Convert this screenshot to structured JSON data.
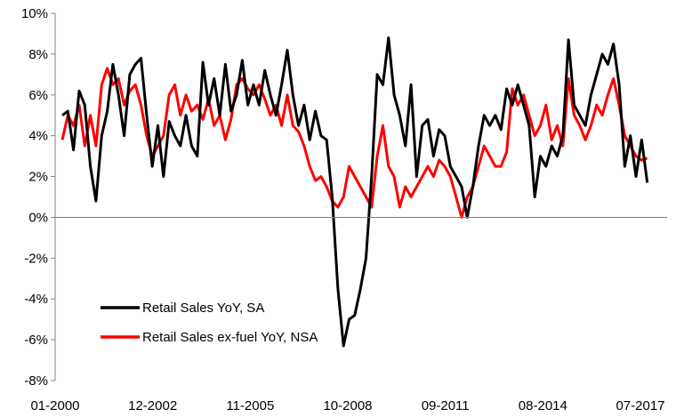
{
  "chart_data": {
    "type": "line",
    "title": "",
    "xlabel": "",
    "ylabel": "",
    "ylim": [
      -0.08,
      0.1
    ],
    "ytick_values": [
      -0.08,
      -0.06,
      -0.04,
      -0.02,
      0,
      0.02,
      0.04,
      0.06,
      0.08,
      0.1
    ],
    "ytick_labels": [
      "-8%",
      "-6%",
      "-4%",
      "-2%",
      "0%",
      "2%",
      "4%",
      "6%",
      "8%",
      "10%"
    ],
    "xlim": [
      "2000-01",
      "2017-07"
    ],
    "xtick_labels": [
      "01-2000",
      "12-2002",
      "11-2005",
      "10-2008",
      "09-2011",
      "08-2014",
      "07-2017"
    ],
    "grid": false,
    "legend_position": "bottom-left, inside plot",
    "series": [
      {
        "name": "Retail Sales YoY, SA",
        "color": "#000000",
        "points": [
          [
            "2000-01",
            5.0
          ],
          [
            "2000-03",
            5.2
          ],
          [
            "2000-05",
            3.3
          ],
          [
            "2000-07",
            6.2
          ],
          [
            "2000-09",
            5.5
          ],
          [
            "2000-11",
            2.5
          ],
          [
            "2001-01",
            0.8
          ],
          [
            "2001-03",
            4.0
          ],
          [
            "2001-05",
            5.2
          ],
          [
            "2001-07",
            7.5
          ],
          [
            "2001-09",
            6.0
          ],
          [
            "2001-11",
            4.0
          ],
          [
            "2002-01",
            7.0
          ],
          [
            "2002-03",
            7.5
          ],
          [
            "2002-05",
            7.8
          ],
          [
            "2002-07",
            5.0
          ],
          [
            "2002-09",
            2.5
          ],
          [
            "2002-11",
            4.5
          ],
          [
            "2003-01",
            2.0
          ],
          [
            "2003-03",
            4.7
          ],
          [
            "2003-05",
            4.0
          ],
          [
            "2003-07",
            3.5
          ],
          [
            "2003-09",
            5.0
          ],
          [
            "2003-11",
            3.5
          ],
          [
            "2004-01",
            3.0
          ],
          [
            "2004-03",
            7.6
          ],
          [
            "2004-05",
            5.5
          ],
          [
            "2004-07",
            6.8
          ],
          [
            "2004-09",
            5.0
          ],
          [
            "2004-11",
            7.5
          ],
          [
            "2005-01",
            5.2
          ],
          [
            "2005-03",
            6.0
          ],
          [
            "2005-05",
            7.7
          ],
          [
            "2005-07",
            5.5
          ],
          [
            "2005-09",
            6.5
          ],
          [
            "2005-11",
            5.5
          ],
          [
            "2006-01",
            7.2
          ],
          [
            "2006-03",
            6.0
          ],
          [
            "2006-05",
            5.0
          ],
          [
            "2006-07",
            6.5
          ],
          [
            "2006-09",
            8.2
          ],
          [
            "2006-11",
            6.0
          ],
          [
            "2007-01",
            4.5
          ],
          [
            "2007-03",
            5.5
          ],
          [
            "2007-05",
            3.8
          ],
          [
            "2007-07",
            5.2
          ],
          [
            "2007-09",
            4.0
          ],
          [
            "2007-11",
            3.8
          ],
          [
            "2008-01",
            1.0
          ],
          [
            "2008-03",
            -3.5
          ],
          [
            "2008-05",
            -6.3
          ],
          [
            "2008-07",
            -5.0
          ],
          [
            "2008-09",
            -4.8
          ],
          [
            "2008-11",
            -3.5
          ],
          [
            "2009-01",
            -2.0
          ],
          [
            "2009-03",
            2.0
          ],
          [
            "2009-05",
            7.0
          ],
          [
            "2009-07",
            6.5
          ],
          [
            "2009-09",
            8.8
          ],
          [
            "2009-11",
            6.0
          ],
          [
            "2010-01",
            5.0
          ],
          [
            "2010-03",
            3.5
          ],
          [
            "2010-05",
            6.5
          ],
          [
            "2010-07",
            2.0
          ],
          [
            "2010-09",
            4.5
          ],
          [
            "2010-11",
            4.8
          ],
          [
            "2011-01",
            3.0
          ],
          [
            "2011-03",
            4.3
          ],
          [
            "2011-05",
            4.0
          ],
          [
            "2011-07",
            2.5
          ],
          [
            "2011-09",
            2.0
          ],
          [
            "2011-11",
            1.5
          ],
          [
            "2012-01",
            0.0
          ],
          [
            "2012-03",
            1.5
          ],
          [
            "2012-05",
            3.5
          ],
          [
            "2012-07",
            5.0
          ],
          [
            "2012-09",
            4.5
          ],
          [
            "2012-11",
            5.0
          ],
          [
            "2013-01",
            4.3
          ],
          [
            "2013-03",
            6.3
          ],
          [
            "2013-05",
            5.5
          ],
          [
            "2013-07",
            6.5
          ],
          [
            "2013-09",
            5.5
          ],
          [
            "2013-11",
            4.5
          ],
          [
            "2014-01",
            1.0
          ],
          [
            "2014-03",
            3.0
          ],
          [
            "2014-05",
            2.5
          ],
          [
            "2014-07",
            3.5
          ],
          [
            "2014-09",
            3.0
          ],
          [
            "2014-11",
            4.0
          ],
          [
            "2015-01",
            8.7
          ],
          [
            "2015-03",
            5.5
          ],
          [
            "2015-05",
            5.0
          ],
          [
            "2015-07",
            4.5
          ],
          [
            "2015-09",
            6.0
          ],
          [
            "2015-11",
            7.0
          ],
          [
            "2016-01",
            8.0
          ],
          [
            "2016-03",
            7.5
          ],
          [
            "2016-05",
            8.5
          ],
          [
            "2016-07",
            6.5
          ],
          [
            "2016-09",
            2.5
          ],
          [
            "2016-11",
            4.0
          ],
          [
            "2017-01",
            2.0
          ],
          [
            "2017-03",
            3.8
          ],
          [
            "2017-05",
            1.7
          ]
        ]
      },
      {
        "name": "Retail Sales ex-fuel YoY, NSA",
        "color": "#ff0000",
        "points": [
          [
            "2000-01",
            3.8
          ],
          [
            "2000-03",
            5.0
          ],
          [
            "2000-05",
            4.5
          ],
          [
            "2000-07",
            5.5
          ],
          [
            "2000-09",
            3.5
          ],
          [
            "2000-11",
            5.0
          ],
          [
            "2001-01",
            3.5
          ],
          [
            "2001-03",
            6.5
          ],
          [
            "2001-05",
            7.3
          ],
          [
            "2001-07",
            6.5
          ],
          [
            "2001-09",
            6.8
          ],
          [
            "2001-11",
            5.5
          ],
          [
            "2002-01",
            6.2
          ],
          [
            "2002-03",
            6.5
          ],
          [
            "2002-05",
            5.5
          ],
          [
            "2002-07",
            4.0
          ],
          [
            "2002-09",
            3.0
          ],
          [
            "2002-11",
            3.5
          ],
          [
            "2003-01",
            4.0
          ],
          [
            "2003-03",
            6.0
          ],
          [
            "2003-05",
            6.5
          ],
          [
            "2003-07",
            5.0
          ],
          [
            "2003-09",
            6.0
          ],
          [
            "2003-11",
            5.2
          ],
          [
            "2004-01",
            5.5
          ],
          [
            "2004-03",
            4.8
          ],
          [
            "2004-05",
            5.8
          ],
          [
            "2004-07",
            4.5
          ],
          [
            "2004-09",
            5.0
          ],
          [
            "2004-11",
            3.8
          ],
          [
            "2005-01",
            4.8
          ],
          [
            "2005-03",
            6.5
          ],
          [
            "2005-05",
            6.8
          ],
          [
            "2005-07",
            6.3
          ],
          [
            "2005-09",
            6.0
          ],
          [
            "2005-11",
            6.5
          ],
          [
            "2006-01",
            5.8
          ],
          [
            "2006-03",
            5.0
          ],
          [
            "2006-05",
            5.5
          ],
          [
            "2006-07",
            4.5
          ],
          [
            "2006-09",
            6.0
          ],
          [
            "2006-11",
            4.5
          ],
          [
            "2007-01",
            4.2
          ],
          [
            "2007-03",
            3.5
          ],
          [
            "2007-05",
            2.5
          ],
          [
            "2007-07",
            1.8
          ],
          [
            "2007-09",
            2.0
          ],
          [
            "2007-11",
            1.5
          ],
          [
            "2008-01",
            0.8
          ],
          [
            "2008-03",
            0.5
          ],
          [
            "2008-05",
            1.0
          ],
          [
            "2008-07",
            2.5
          ],
          [
            "2008-09",
            2.0
          ],
          [
            "2008-11",
            1.5
          ],
          [
            "2009-01",
            1.0
          ],
          [
            "2009-03",
            0.5
          ],
          [
            "2009-05",
            3.0
          ],
          [
            "2009-07",
            4.5
          ],
          [
            "2009-09",
            2.5
          ],
          [
            "2009-11",
            2.0
          ],
          [
            "2010-01",
            0.5
          ],
          [
            "2010-03",
            1.5
          ],
          [
            "2010-05",
            1.0
          ],
          [
            "2010-07",
            1.5
          ],
          [
            "2010-09",
            2.0
          ],
          [
            "2010-11",
            2.5
          ],
          [
            "2011-01",
            2.0
          ],
          [
            "2011-03",
            2.8
          ],
          [
            "2011-05",
            2.5
          ],
          [
            "2011-07",
            2.0
          ],
          [
            "2011-09",
            1.0
          ],
          [
            "2011-11",
            0.0
          ],
          [
            "2012-01",
            1.0
          ],
          [
            "2012-03",
            1.5
          ],
          [
            "2012-05",
            2.5
          ],
          [
            "2012-07",
            3.5
          ],
          [
            "2012-09",
            3.0
          ],
          [
            "2012-11",
            2.5
          ],
          [
            "2013-01",
            2.5
          ],
          [
            "2013-03",
            3.2
          ],
          [
            "2013-05",
            6.3
          ],
          [
            "2013-07",
            5.5
          ],
          [
            "2013-09",
            6.0
          ],
          [
            "2013-11",
            5.0
          ],
          [
            "2014-01",
            4.0
          ],
          [
            "2014-03",
            4.5
          ],
          [
            "2014-05",
            5.5
          ],
          [
            "2014-07",
            3.8
          ],
          [
            "2014-09",
            4.5
          ],
          [
            "2014-11",
            3.5
          ],
          [
            "2015-01",
            6.8
          ],
          [
            "2015-03",
            5.0
          ],
          [
            "2015-05",
            4.5
          ],
          [
            "2015-07",
            3.8
          ],
          [
            "2015-09",
            4.5
          ],
          [
            "2015-11",
            5.5
          ],
          [
            "2016-01",
            5.0
          ],
          [
            "2016-03",
            6.0
          ],
          [
            "2016-05",
            6.8
          ],
          [
            "2016-07",
            5.5
          ],
          [
            "2016-09",
            4.0
          ],
          [
            "2016-11",
            3.5
          ],
          [
            "2017-01",
            3.0
          ],
          [
            "2017-03",
            2.8
          ],
          [
            "2017-05",
            2.9
          ]
        ]
      }
    ]
  }
}
